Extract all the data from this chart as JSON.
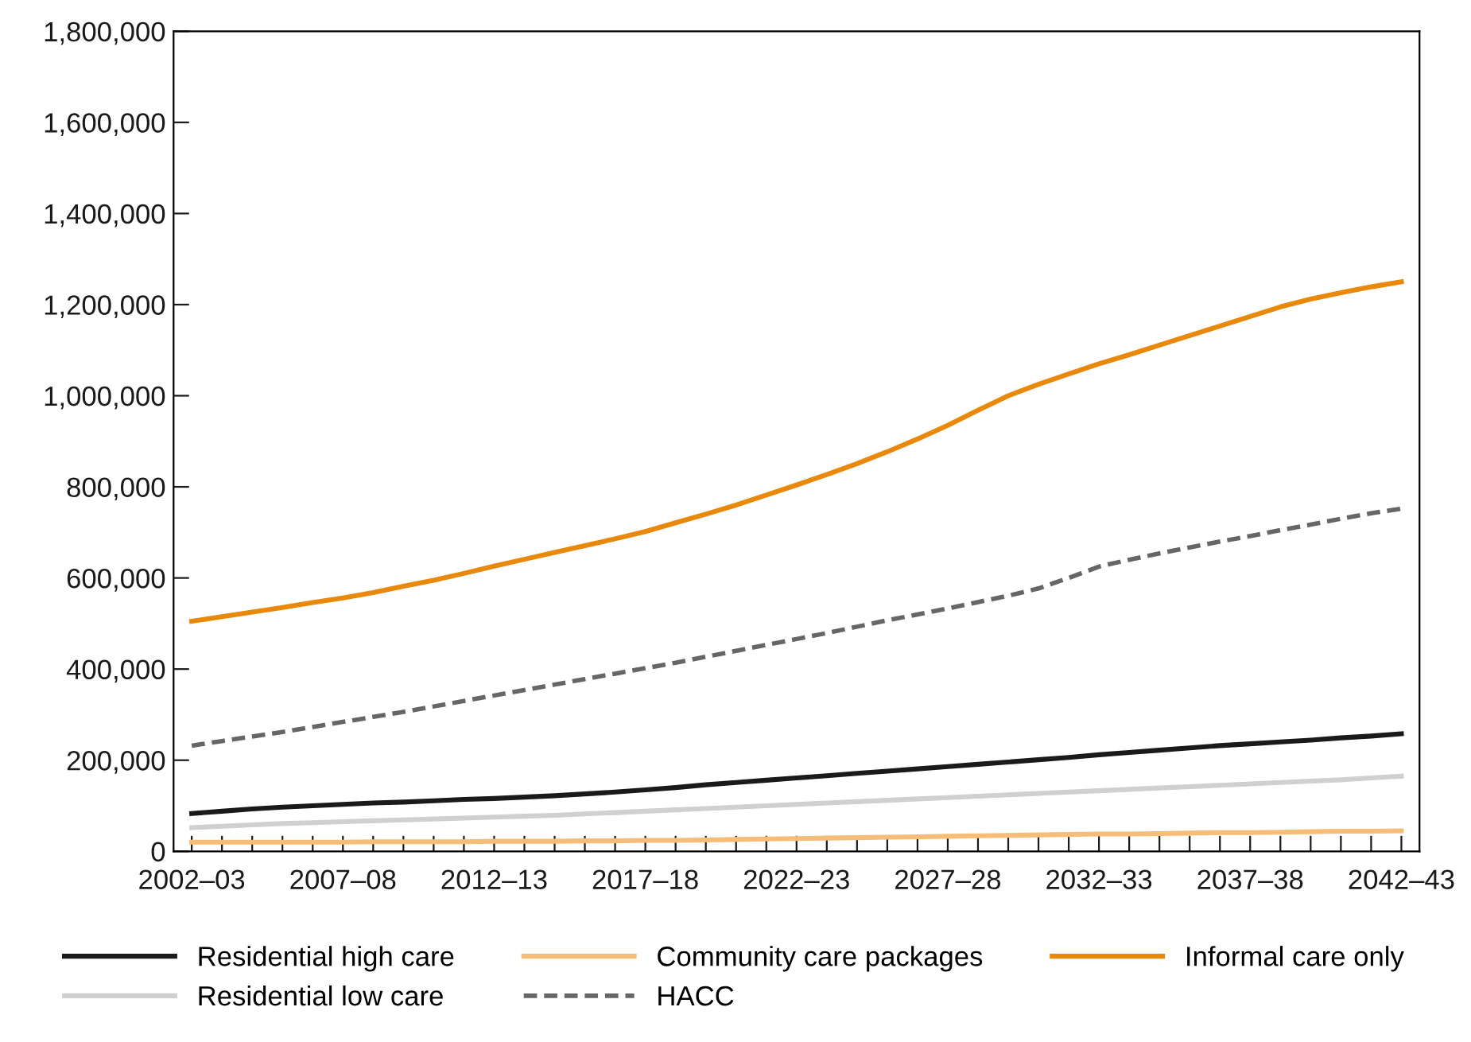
{
  "chart_data": {
    "type": "line",
    "categories": [
      "2002–03",
      null,
      null,
      null,
      null,
      "2007–08",
      null,
      null,
      null,
      null,
      "2012–13",
      null,
      null,
      null,
      null,
      "2017–18",
      null,
      null,
      null,
      null,
      "2022–23",
      null,
      null,
      null,
      null,
      "2027–28",
      null,
      null,
      null,
      null,
      "2032–33",
      null,
      null,
      null,
      null,
      "2037–38",
      null,
      null,
      null,
      null,
      "2042–43"
    ],
    "ylim": [
      0,
      1800000
    ],
    "yticks": [
      {
        "value": 0,
        "label": "0"
      },
      {
        "value": 200000,
        "label": "200,000"
      },
      {
        "value": 400000,
        "label": "400,000"
      },
      {
        "value": 600000,
        "label": "600,000"
      },
      {
        "value": 800000,
        "label": "800,000"
      },
      {
        "value": 1000000,
        "label": "1,000,000"
      },
      {
        "value": 1200000,
        "label": "1,200,000"
      },
      {
        "value": 1400000,
        "label": "1,400,000"
      },
      {
        "value": 1600000,
        "label": "1,600,000"
      },
      {
        "value": 1800000,
        "label": "1,800,000"
      }
    ],
    "grid": false,
    "legend": "bottom",
    "marker": "none",
    "series": [
      {
        "name": "Residential high care",
        "color": "#1a1a1a",
        "line_style": "solid",
        "values": [
          83000,
          88000,
          93000,
          97000,
          100000,
          103000,
          106000,
          108000,
          111000,
          114000,
          116000,
          119000,
          122000,
          126000,
          130000,
          135000,
          140000,
          146000,
          151000,
          156000,
          161000,
          166000,
          171000,
          176000,
          181000,
          186000,
          191000,
          196000,
          201000,
          206000,
          212000,
          217000,
          222000,
          227000,
          232000,
          236000,
          240000,
          244000,
          249000,
          253000,
          258000
        ]
      },
      {
        "name": "Residential low care",
        "color": "#d0d0d0",
        "line_style": "solid",
        "values": [
          52000,
          55000,
          58000,
          61000,
          63000,
          65000,
          67000,
          69000,
          71000,
          73000,
          75000,
          77000,
          79000,
          82000,
          85000,
          88000,
          91000,
          94000,
          97000,
          100000,
          103000,
          106000,
          109000,
          112000,
          115000,
          118000,
          121000,
          124000,
          127000,
          130000,
          133000,
          136000,
          139000,
          142000,
          145000,
          148000,
          151000,
          154000,
          157000,
          161000,
          165000
        ]
      },
      {
        "name": "Community care packages",
        "color": "#f5bd78",
        "line_style": "solid",
        "values": [
          20000,
          20000,
          20000,
          20000,
          20000,
          20000,
          21000,
          21000,
          21000,
          21000,
          22000,
          22000,
          22000,
          23000,
          23000,
          24000,
          24000,
          25000,
          26000,
          27000,
          28000,
          29000,
          30000,
          31000,
          32000,
          33000,
          34000,
          35000,
          36000,
          37000,
          38000,
          38000,
          39000,
          40000,
          41000,
          41000,
          42000,
          43000,
          44000,
          44000,
          45000
        ]
      },
      {
        "name": "HACC",
        "color": "#666666",
        "line_style": "dashed",
        "values": [
          232000,
          242000,
          252000,
          262000,
          273000,
          284000,
          295000,
          306000,
          318000,
          330000,
          342000,
          354000,
          366000,
          378000,
          390000,
          402000,
          414000,
          427000,
          440000,
          453000,
          466000,
          479000,
          493000,
          507000,
          520000,
          533000,
          547000,
          561000,
          577000,
          600000,
          625000,
          640000,
          654000,
          667000,
          680000,
          692000,
          705000,
          717000,
          730000,
          742000,
          752000
        ]
      },
      {
        "name": "Informal care only",
        "color": "#e8890c",
        "line_style": "solid",
        "values": [
          505000,
          515000,
          525000,
          535000,
          546000,
          556000,
          568000,
          582000,
          595000,
          610000,
          626000,
          641000,
          656000,
          671000,
          686000,
          702000,
          721000,
          740000,
          760000,
          782000,
          804000,
          827000,
          851000,
          877000,
          905000,
          935000,
          968000,
          1000000,
          1025000,
          1048000,
          1070000,
          1090000,
          1111000,
          1132000,
          1153000,
          1174000,
          1195000,
          1212000,
          1226000,
          1239000,
          1250000
        ]
      }
    ]
  }
}
